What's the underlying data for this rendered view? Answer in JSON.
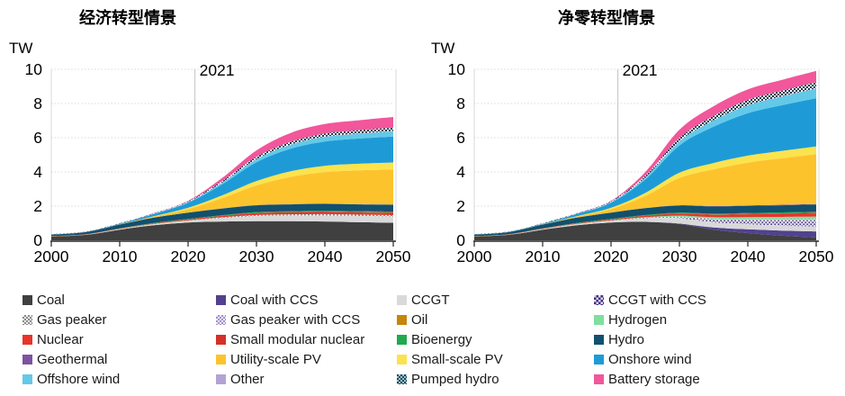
{
  "page": {
    "background": "#ffffff"
  },
  "charts": [
    {
      "title": "经济转型情景",
      "unit": "TW"
    },
    {
      "title": "净零转型情景",
      "unit": "TW"
    }
  ],
  "chart_data": [
    {
      "type": "area",
      "title": "经济转型情景",
      "unit": "TW",
      "x": [
        2000,
        2005,
        2010,
        2015,
        2020,
        2025,
        2030,
        2035,
        2040,
        2045,
        2050
      ],
      "x_ticks": [
        "2000",
        "2010",
        "2020",
        "2030",
        "2040",
        "2050"
      ],
      "y_ticks": [
        "0",
        "2",
        "4",
        "6",
        "8",
        "10"
      ],
      "ylim": [
        0,
        10
      ],
      "grid": "horizontal-dotted",
      "annotation": {
        "label": "2021",
        "x": 2021
      },
      "series": [
        {
          "name": "Coal",
          "slug": "coal",
          "color": "#404040",
          "values": [
            0.22,
            0.32,
            0.62,
            0.88,
            1.04,
            1.1,
            1.12,
            1.12,
            1.1,
            1.06,
            1.02
          ]
        },
        {
          "name": "Coal with CCS",
          "slug": "coal-ccs",
          "color": "#52418f",
          "values": [
            0,
            0,
            0,
            0,
            0,
            0,
            0,
            0,
            0,
            0,
            0
          ]
        },
        {
          "name": "CCGT",
          "slug": "ccgt",
          "color": "#d9d9d9",
          "values": [
            0.01,
            0.01,
            0.03,
            0.06,
            0.1,
            0.2,
            0.3,
            0.33,
            0.35,
            0.36,
            0.37
          ]
        },
        {
          "name": "CCGT with CCS",
          "slug": "ccgt-ccs",
          "color": "#ded7ee",
          "pattern": {
            "type": "dots",
            "bg": "#ded7ee",
            "fg": "#42307f"
          },
          "values": [
            0,
            0,
            0,
            0,
            0,
            0,
            0,
            0,
            0,
            0,
            0
          ]
        },
        {
          "name": "Gas peaker",
          "slug": "gas-peaker",
          "color": "#f2f2f2",
          "pattern": {
            "type": "checker",
            "bg": "#f2f2f2",
            "fg": "#8a8a8a"
          },
          "values": [
            0,
            0,
            0.01,
            0.01,
            0.02,
            0.04,
            0.06,
            0.07,
            0.08,
            0.08,
            0.08
          ]
        },
        {
          "name": "Gas peaker with CCS",
          "slug": "gas-peaker-ccs",
          "color": "#f0ebf8",
          "pattern": {
            "type": "checker",
            "bg": "#f0ebf8",
            "fg": "#a393cf"
          },
          "values": [
            0,
            0,
            0,
            0,
            0,
            0,
            0,
            0,
            0,
            0,
            0
          ]
        },
        {
          "name": "Oil",
          "slug": "oil",
          "color": "#c4860b",
          "values": [
            0.01,
            0.01,
            0.01,
            0.01,
            0.01,
            0.01,
            0,
            0,
            0,
            0,
            0
          ]
        },
        {
          "name": "Hydrogen",
          "slug": "hydrogen",
          "color": "#7fdf9e",
          "values": [
            0,
            0,
            0,
            0,
            0,
            0,
            0,
            0,
            0,
            0,
            0
          ]
        },
        {
          "name": "Nuclear",
          "slug": "nuclear",
          "color": "#e8342a",
          "values": [
            0.01,
            0.02,
            0.02,
            0.03,
            0.05,
            0.08,
            0.11,
            0.12,
            0.13,
            0.13,
            0.14
          ]
        },
        {
          "name": "Small modular nuclear",
          "slug": "smr",
          "color": "#d43028",
          "values": [
            0,
            0,
            0,
            0,
            0,
            0,
            0.01,
            0.01,
            0.02,
            0.02,
            0.02
          ]
        },
        {
          "name": "Bioenergy",
          "slug": "bioenergy",
          "color": "#21a94d",
          "values": [
            0,
            0,
            0.01,
            0.02,
            0.03,
            0.04,
            0.05,
            0.05,
            0.05,
            0.05,
            0.05
          ]
        },
        {
          "name": "Hydro",
          "slug": "hydro",
          "color": "#12506e",
          "values": [
            0.08,
            0.12,
            0.22,
            0.32,
            0.37,
            0.39,
            0.4,
            0.4,
            0.4,
            0.4,
            0.4
          ]
        },
        {
          "name": "Geothermal",
          "slug": "geothermal",
          "color": "#7e52a3",
          "values": [
            0,
            0,
            0,
            0,
            0,
            0.01,
            0.01,
            0.01,
            0.01,
            0.01,
            0.01
          ]
        },
        {
          "name": "Utility-scale PV",
          "slug": "utility-pv",
          "color": "#fdc32d",
          "values": [
            0,
            0,
            0.01,
            0.06,
            0.2,
            0.6,
            1.15,
            1.6,
            1.85,
            1.98,
            2.05
          ]
        },
        {
          "name": "Small-scale PV",
          "slug": "small-pv",
          "color": "#fbe34d",
          "values": [
            0,
            0,
            0,
            0.02,
            0.08,
            0.16,
            0.26,
            0.33,
            0.37,
            0.39,
            0.41
          ]
        },
        {
          "name": "Onshore wind",
          "slug": "onshore-wind",
          "color": "#1e9bd7",
          "values": [
            0.01,
            0.01,
            0.04,
            0.13,
            0.3,
            0.65,
            1.1,
            1.32,
            1.42,
            1.47,
            1.52
          ]
        },
        {
          "name": "Offshore wind",
          "slug": "offshore-wind",
          "color": "#63c9e8",
          "values": [
            0,
            0,
            0,
            0.01,
            0.03,
            0.09,
            0.16,
            0.22,
            0.26,
            0.28,
            0.3
          ]
        },
        {
          "name": "Other",
          "slug": "other",
          "color": "#b3a3d4",
          "values": [
            0.01,
            0.01,
            0.01,
            0.01,
            0.01,
            0.02,
            0.02,
            0.02,
            0.02,
            0.02,
            0.02
          ]
        },
        {
          "name": "Pumped hydro",
          "slug": "pumped-hydro",
          "color": "#1c4c5e",
          "pattern": {
            "type": "checker",
            "bg": "#fdfdfd",
            "fg": "#173d4d"
          },
          "values": [
            0.01,
            0.01,
            0.02,
            0.02,
            0.04,
            0.08,
            0.13,
            0.16,
            0.18,
            0.19,
            0.2
          ]
        },
        {
          "name": "Battery storage",
          "slug": "battery",
          "color": "#f2569b",
          "values": [
            0,
            0,
            0,
            0.01,
            0.03,
            0.18,
            0.38,
            0.52,
            0.56,
            0.58,
            0.62
          ]
        }
      ]
    },
    {
      "type": "area",
      "title": "净零转型情景",
      "unit": "TW",
      "x": [
        2000,
        2005,
        2010,
        2015,
        2020,
        2025,
        2030,
        2035,
        2040,
        2045,
        2050
      ],
      "x_ticks": [
        "2000",
        "2010",
        "2020",
        "2030",
        "2040",
        "2050"
      ],
      "y_ticks": [
        "0",
        "2",
        "4",
        "6",
        "8",
        "10"
      ],
      "ylim": [
        0,
        10
      ],
      "grid": "horizontal-dotted",
      "annotation": {
        "label": "2021",
        "x": 2021
      },
      "series": [
        {
          "name": "Coal",
          "slug": "coal",
          "color": "#404040",
          "values": [
            0.22,
            0.32,
            0.62,
            0.88,
            1.04,
            1.08,
            0.95,
            0.62,
            0.42,
            0.27,
            0.16
          ]
        },
        {
          "name": "Coal with CCS",
          "slug": "coal-ccs",
          "color": "#52418f",
          "values": [
            0,
            0,
            0,
            0,
            0,
            0,
            0.03,
            0.13,
            0.22,
            0.3,
            0.36
          ]
        },
        {
          "name": "CCGT",
          "slug": "ccgt",
          "color": "#d9d9d9",
          "values": [
            0.01,
            0.01,
            0.03,
            0.06,
            0.1,
            0.2,
            0.3,
            0.3,
            0.3,
            0.29,
            0.28
          ]
        },
        {
          "name": "CCGT with CCS",
          "slug": "ccgt-ccs",
          "color": "#ded7ee",
          "pattern": {
            "type": "dots",
            "bg": "#ded7ee",
            "fg": "#42307f"
          },
          "values": [
            0,
            0,
            0,
            0,
            0,
            0.01,
            0.04,
            0.13,
            0.21,
            0.28,
            0.34
          ]
        },
        {
          "name": "Gas peaker",
          "slug": "gas-peaker",
          "color": "#f2f2f2",
          "pattern": {
            "type": "checker",
            "bg": "#f2f2f2",
            "fg": "#8a8a8a"
          },
          "values": [
            0,
            0,
            0.01,
            0.01,
            0.02,
            0.03,
            0.05,
            0.05,
            0.05,
            0.05,
            0.05
          ]
        },
        {
          "name": "Gas peaker with CCS",
          "slug": "gas-peaker-ccs",
          "color": "#f0ebf8",
          "pattern": {
            "type": "checker",
            "bg": "#f0ebf8",
            "fg": "#a393cf"
          },
          "values": [
            0,
            0,
            0,
            0,
            0,
            0,
            0.01,
            0.02,
            0.03,
            0.04,
            0.05
          ]
        },
        {
          "name": "Oil",
          "slug": "oil",
          "color": "#c4860b",
          "values": [
            0.01,
            0.01,
            0.01,
            0.01,
            0.01,
            0.01,
            0,
            0,
            0,
            0,
            0
          ]
        },
        {
          "name": "Hydrogen",
          "slug": "hydrogen",
          "color": "#7fdf9e",
          "values": [
            0,
            0,
            0,
            0,
            0,
            0.02,
            0.06,
            0.1,
            0.13,
            0.14,
            0.15
          ]
        },
        {
          "name": "Nuclear",
          "slug": "nuclear",
          "color": "#e8342a",
          "values": [
            0.01,
            0.02,
            0.02,
            0.03,
            0.05,
            0.09,
            0.12,
            0.14,
            0.16,
            0.17,
            0.18
          ]
        },
        {
          "name": "Small modular nuclear",
          "slug": "smr",
          "color": "#d43028",
          "values": [
            0,
            0,
            0,
            0,
            0,
            0,
            0.01,
            0.02,
            0.03,
            0.04,
            0.05
          ]
        },
        {
          "name": "Bioenergy",
          "slug": "bioenergy",
          "color": "#21a94d",
          "values": [
            0,
            0,
            0.01,
            0.02,
            0.03,
            0.04,
            0.05,
            0.05,
            0.05,
            0.05,
            0.05
          ]
        },
        {
          "name": "Hydro",
          "slug": "hydro",
          "color": "#12506e",
          "values": [
            0.08,
            0.12,
            0.22,
            0.32,
            0.37,
            0.4,
            0.42,
            0.42,
            0.42,
            0.42,
            0.42
          ]
        },
        {
          "name": "Geothermal",
          "slug": "geothermal",
          "color": "#7e52a3",
          "values": [
            0,
            0,
            0,
            0,
            0,
            0.01,
            0.01,
            0.02,
            0.02,
            0.03,
            0.03
          ]
        },
        {
          "name": "Utility-scale PV",
          "slug": "utility-pv",
          "color": "#fdc32d",
          "values": [
            0,
            0,
            0.01,
            0.06,
            0.2,
            0.7,
            1.6,
            2.15,
            2.5,
            2.72,
            2.92
          ]
        },
        {
          "name": "Small-scale PV",
          "slug": "small-pv",
          "color": "#fbe34d",
          "values": [
            0,
            0,
            0,
            0.02,
            0.08,
            0.18,
            0.3,
            0.37,
            0.41,
            0.43,
            0.45
          ]
        },
        {
          "name": "Onshore wind",
          "slug": "onshore-wind",
          "color": "#1e9bd7",
          "values": [
            0.01,
            0.01,
            0.04,
            0.13,
            0.3,
            0.78,
            1.6,
            2.12,
            2.48,
            2.67,
            2.82
          ]
        },
        {
          "name": "Offshore wind",
          "slug": "offshore-wind",
          "color": "#63c9e8",
          "values": [
            0,
            0,
            0,
            0.01,
            0.03,
            0.1,
            0.23,
            0.36,
            0.45,
            0.5,
            0.56
          ]
        },
        {
          "name": "Other",
          "slug": "other",
          "color": "#b3a3d4",
          "values": [
            0.01,
            0.01,
            0.01,
            0.01,
            0.01,
            0.02,
            0.02,
            0.02,
            0.02,
            0.02,
            0.02
          ]
        },
        {
          "name": "Pumped hydro",
          "slug": "pumped-hydro",
          "color": "#1c4c5e",
          "pattern": {
            "type": "checker",
            "bg": "#fdfdfd",
            "fg": "#173d4d"
          },
          "values": [
            0.01,
            0.01,
            0.02,
            0.02,
            0.04,
            0.1,
            0.19,
            0.26,
            0.31,
            0.33,
            0.36
          ]
        },
        {
          "name": "Battery storage",
          "slug": "battery",
          "color": "#f2569b",
          "values": [
            0,
            0,
            0,
            0.01,
            0.03,
            0.22,
            0.48,
            0.56,
            0.61,
            0.63,
            0.66
          ]
        }
      ]
    }
  ],
  "legend": {
    "columns": [
      [
        {
          "label": "Coal",
          "slug": "coal",
          "swatch": {
            "color": "#404040"
          }
        },
        {
          "label": "Gas peaker",
          "slug": "gas-peaker",
          "swatch": {
            "type": "checker",
            "bg": "#f2f2f2",
            "fg": "#8a8a8a"
          }
        },
        {
          "label": "Nuclear",
          "slug": "nuclear",
          "swatch": {
            "color": "#e8342a"
          }
        },
        {
          "label": "Geothermal",
          "slug": "geothermal",
          "swatch": {
            "color": "#7e52a3"
          }
        },
        {
          "label": "Offshore wind",
          "slug": "offshore-wind",
          "swatch": {
            "color": "#63c9e8"
          }
        }
      ],
      [
        {
          "label": "Coal with CCS",
          "slug": "coal-ccs",
          "swatch": {
            "color": "#52418f"
          }
        },
        {
          "label": "Gas peaker with CCS",
          "slug": "gas-peaker-ccs",
          "swatch": {
            "type": "checker",
            "bg": "#f0ebf8",
            "fg": "#a393cf"
          }
        },
        {
          "label": "Small modular nuclear",
          "slug": "smr",
          "swatch": {
            "color": "#d43028"
          }
        },
        {
          "label": "Utility-scale PV",
          "slug": "utility-pv",
          "swatch": {
            "color": "#fdc32d"
          }
        },
        {
          "label": "Other",
          "slug": "other",
          "swatch": {
            "color": "#b3a3d4"
          }
        }
      ],
      [
        {
          "label": "CCGT",
          "slug": "ccgt",
          "swatch": {
            "color": "#d9d9d9"
          }
        },
        {
          "label": "Oil",
          "slug": "oil",
          "swatch": {
            "color": "#c4860b"
          }
        },
        {
          "label": "Bioenergy",
          "slug": "bioenergy",
          "swatch": {
            "color": "#21a94d"
          }
        },
        {
          "label": "Small-scale PV",
          "slug": "small-pv",
          "swatch": {
            "color": "#fbe34d"
          }
        },
        {
          "label": "Pumped hydro",
          "slug": "pumped-hydro",
          "swatch": {
            "type": "checker",
            "bg": "#1c4c5e",
            "fg": "#9fc0cb"
          }
        }
      ],
      [
        {
          "label": "CCGT with CCS",
          "slug": "ccgt-ccs",
          "swatch": {
            "type": "dots",
            "bg": "#ded7ee",
            "fg": "#42307f"
          }
        },
        {
          "label": "Hydrogen",
          "slug": "hydrogen",
          "swatch": {
            "color": "#7fdf9e"
          }
        },
        {
          "label": "Hydro",
          "slug": "hydro",
          "swatch": {
            "color": "#12506e"
          }
        },
        {
          "label": "Onshore wind",
          "slug": "onshore-wind",
          "swatch": {
            "color": "#1e9bd7"
          }
        },
        {
          "label": "Battery storage",
          "slug": "battery",
          "swatch": {
            "color": "#f2569b"
          }
        }
      ]
    ]
  }
}
